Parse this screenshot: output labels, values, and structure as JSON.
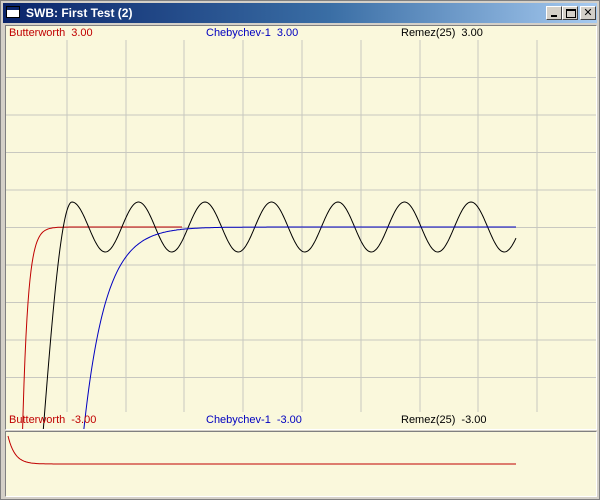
{
  "window": {
    "title": "SWB: First Test (2)",
    "buttons": {
      "minimize": "minimize-icon",
      "maximize": "maximize-icon",
      "close": "close-icon"
    }
  },
  "main_plot": {
    "labels_top": [
      {
        "name": "Butterworth",
        "value": "3.00",
        "color": "#c00000"
      },
      {
        "name": "Chebychev-1",
        "value": "3.00",
        "color": "#0000c0"
      },
      {
        "name": "Remez(25)",
        "value": "3.00",
        "color": "#000000"
      }
    ],
    "labels_bottom": [
      {
        "name": "Butterworth",
        "value": "-3.00",
        "color": "#c00000"
      },
      {
        "name": "Chebychev-1",
        "value": "-3.00",
        "color": "#0000c0"
      },
      {
        "name": "Remez(25)",
        "value": "-3.00",
        "color": "#000000"
      }
    ]
  },
  "colors": {
    "background": "#faf8dc",
    "grid": "#c8c8c0",
    "butterworth": "#c00000",
    "chebychev": "#0000c0",
    "remez": "#000000"
  }
}
